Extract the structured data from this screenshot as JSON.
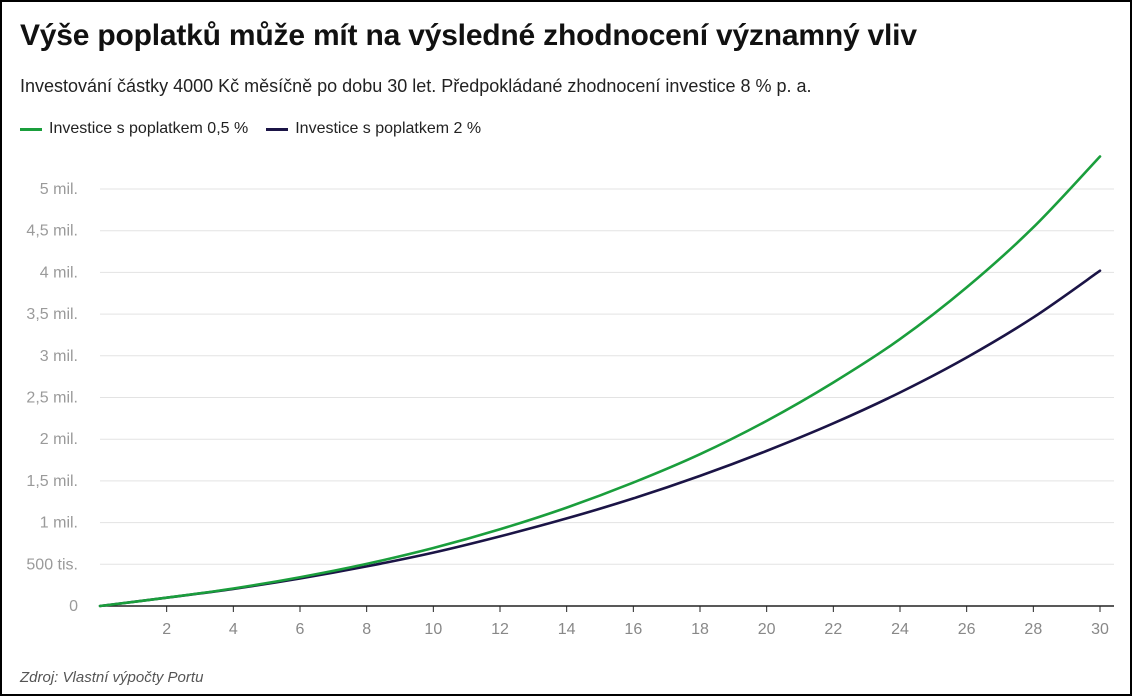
{
  "title": "Výše poplatků může mít na výsledné zhodnocení významný vliv",
  "subtitle": "Investování částky 4000 Kč měsíčně po dobu 30 let. Předpokládané zhodnocení investice 8 % p. a.",
  "source": "Zdroj: Vlastní výpočty Portu",
  "chart_data": {
    "type": "line",
    "title": "Výše poplatků může mít na výsledné zhodnocení významný vliv",
    "subtitle": "Investování částky 4000 Kč měsíčně po dobu 30 let. Předpokládané zhodnocení investice 8 % p. a.",
    "xlabel": "",
    "ylabel": "",
    "xlim": [
      0,
      30
    ],
    "ylim": [
      0,
      5400000
    ],
    "x_ticks": [
      2,
      4,
      6,
      8,
      10,
      12,
      14,
      16,
      18,
      20,
      22,
      24,
      26,
      28,
      30
    ],
    "y_ticks": [
      {
        "value": 0,
        "label": "0"
      },
      {
        "value": 500000,
        "label": "500 tis."
      },
      {
        "value": 1000000,
        "label": "1 mil."
      },
      {
        "value": 1500000,
        "label": "1,5 mil."
      },
      {
        "value": 2000000,
        "label": "2 mil."
      },
      {
        "value": 2500000,
        "label": "2,5 mil."
      },
      {
        "value": 3000000,
        "label": "3 mil."
      },
      {
        "value": 3500000,
        "label": "3,5 mil."
      },
      {
        "value": 4000000,
        "label": "4 mil."
      },
      {
        "value": 4500000,
        "label": "4,5 mil."
      },
      {
        "value": 5000000,
        "label": "5 mil."
      }
    ],
    "grid": true,
    "legend_position": "top-left",
    "x": [
      0,
      2,
      4,
      6,
      8,
      10,
      12,
      14,
      16,
      18,
      20,
      22,
      24,
      26,
      28,
      30
    ],
    "series": [
      {
        "name": "Investice s poplatkem 0,5 %",
        "color": "#1a9e3c",
        "values": [
          0,
          100000,
          210000,
          345000,
          505000,
          695000,
          920000,
          1180000,
          1480000,
          1820000,
          2220000,
          2680000,
          3200000,
          3820000,
          4540000,
          5390000
        ]
      },
      {
        "name": "Investice s poplatkem 2 %",
        "color": "#1b1446",
        "values": [
          0,
          100000,
          205000,
          330000,
          475000,
          640000,
          835000,
          1050000,
          1290000,
          1560000,
          1860000,
          2190000,
          2560000,
          2980000,
          3460000,
          4020000
        ]
      }
    ]
  }
}
